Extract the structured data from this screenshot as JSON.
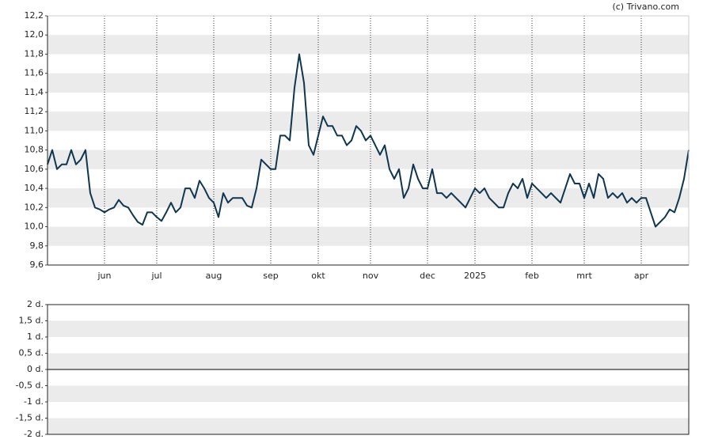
{
  "chart_data": [
    {
      "type": "line",
      "annotation": "(c) Trivano.com",
      "color": "#0f3650",
      "categories": [
        null,
        null,
        null,
        null,
        null,
        null,
        null,
        null,
        null,
        null,
        null,
        null,
        "jun",
        null,
        null,
        null,
        null,
        null,
        null,
        null,
        null,
        null,
        null,
        "jul",
        null,
        null,
        null,
        null,
        null,
        null,
        null,
        null,
        null,
        null,
        null,
        "aug",
        null,
        null,
        null,
        null,
        null,
        null,
        null,
        null,
        null,
        null,
        null,
        "sep",
        null,
        null,
        null,
        null,
        null,
        null,
        null,
        null,
        null,
        "okt",
        null,
        null,
        null,
        null,
        null,
        null,
        null,
        null,
        null,
        null,
        "nov",
        null,
        null,
        null,
        null,
        null,
        null,
        null,
        null,
        null,
        null,
        null,
        "dec",
        null,
        null,
        null,
        null,
        null,
        null,
        null,
        null,
        null,
        "2025",
        null,
        null,
        null,
        null,
        null,
        null,
        null,
        null,
        null,
        null,
        null,
        "feb",
        null,
        null,
        null,
        null,
        null,
        null,
        null,
        null,
        null,
        null,
        "mrt",
        null,
        null,
        null,
        null,
        null,
        null,
        null,
        null,
        null,
        null,
        null,
        "apr",
        null,
        null,
        null,
        null,
        null,
        null,
        null,
        null,
        null,
        null
      ],
      "values": [
        10.65,
        10.8,
        10.6,
        10.65,
        10.65,
        10.8,
        10.65,
        10.7,
        10.8,
        10.35,
        10.2,
        10.18,
        10.15,
        10.18,
        10.2,
        10.28,
        10.22,
        10.2,
        10.12,
        10.05,
        10.02,
        10.15,
        10.15,
        10.1,
        10.06,
        10.15,
        10.25,
        10.15,
        10.2,
        10.4,
        10.4,
        10.3,
        10.48,
        10.4,
        10.3,
        10.25,
        10.1,
        10.35,
        10.25,
        10.3,
        10.3,
        10.3,
        10.22,
        10.2,
        10.4,
        10.7,
        10.65,
        10.6,
        10.6,
        10.95,
        10.95,
        10.9,
        11.45,
        11.8,
        11.5,
        10.85,
        10.75,
        10.95,
        11.15,
        11.05,
        11.05,
        10.95,
        10.95,
        10.85,
        10.9,
        11.05,
        11.0,
        10.9,
        10.95,
        10.85,
        10.75,
        10.85,
        10.6,
        10.5,
        10.6,
        10.3,
        10.4,
        10.65,
        10.5,
        10.4,
        10.4,
        10.6,
        10.35,
        10.35,
        10.3,
        10.35,
        10.3,
        10.25,
        10.2,
        10.3,
        10.4,
        10.35,
        10.4,
        10.3,
        10.25,
        10.2,
        10.2,
        10.35,
        10.45,
        10.4,
        10.5,
        10.3,
        10.45,
        10.4,
        10.35,
        10.3,
        10.35,
        10.3,
        10.25,
        10.4,
        10.55,
        10.45,
        10.45,
        10.3,
        10.45,
        10.3,
        10.55,
        10.5,
        10.3,
        10.35,
        10.3,
        10.35,
        10.25,
        10.3,
        10.25,
        10.3,
        10.3,
        10.15,
        10.0,
        10.05,
        10.1,
        10.18,
        10.15,
        10.3,
        10.5,
        10.8
      ],
      "ylim": [
        9.6,
        12.2
      ],
      "yticks": [
        {
          "value": 9.6,
          "label": "9,6"
        },
        {
          "value": 9.8,
          "label": "9,8"
        },
        {
          "value": 10.0,
          "label": "10,0"
        },
        {
          "value": 10.2,
          "label": "10,2"
        },
        {
          "value": 10.4,
          "label": "10,4"
        },
        {
          "value": 10.6,
          "label": "10,6"
        },
        {
          "value": 10.8,
          "label": "10,8"
        },
        {
          "value": 11.0,
          "label": "11,0"
        },
        {
          "value": 11.2,
          "label": "11,2"
        },
        {
          "value": 11.4,
          "label": "11,4"
        },
        {
          "value": 11.6,
          "label": "11,6"
        },
        {
          "value": 11.8,
          "label": "11,8"
        },
        {
          "value": 12.0,
          "label": "12,0"
        },
        {
          "value": 12.2,
          "label": "12,2"
        }
      ],
      "grid": true
    },
    {
      "type": "bar",
      "ylim": [
        -2,
        2
      ],
      "yticks": [
        {
          "value": -2,
          "label": "-2 d."
        },
        {
          "value": -1.5,
          "label": "-1,5 d."
        },
        {
          "value": -1,
          "label": "-1 d."
        },
        {
          "value": -0.5,
          "label": "-0,5 d."
        },
        {
          "value": 0,
          "label": "0 d."
        },
        {
          "value": 0.5,
          "label": "0,5 d."
        },
        {
          "value": 1,
          "label": "1 d."
        },
        {
          "value": 1.5,
          "label": "1,5 d."
        },
        {
          "value": 2,
          "label": "2 d."
        }
      ],
      "grid": true
    }
  ]
}
